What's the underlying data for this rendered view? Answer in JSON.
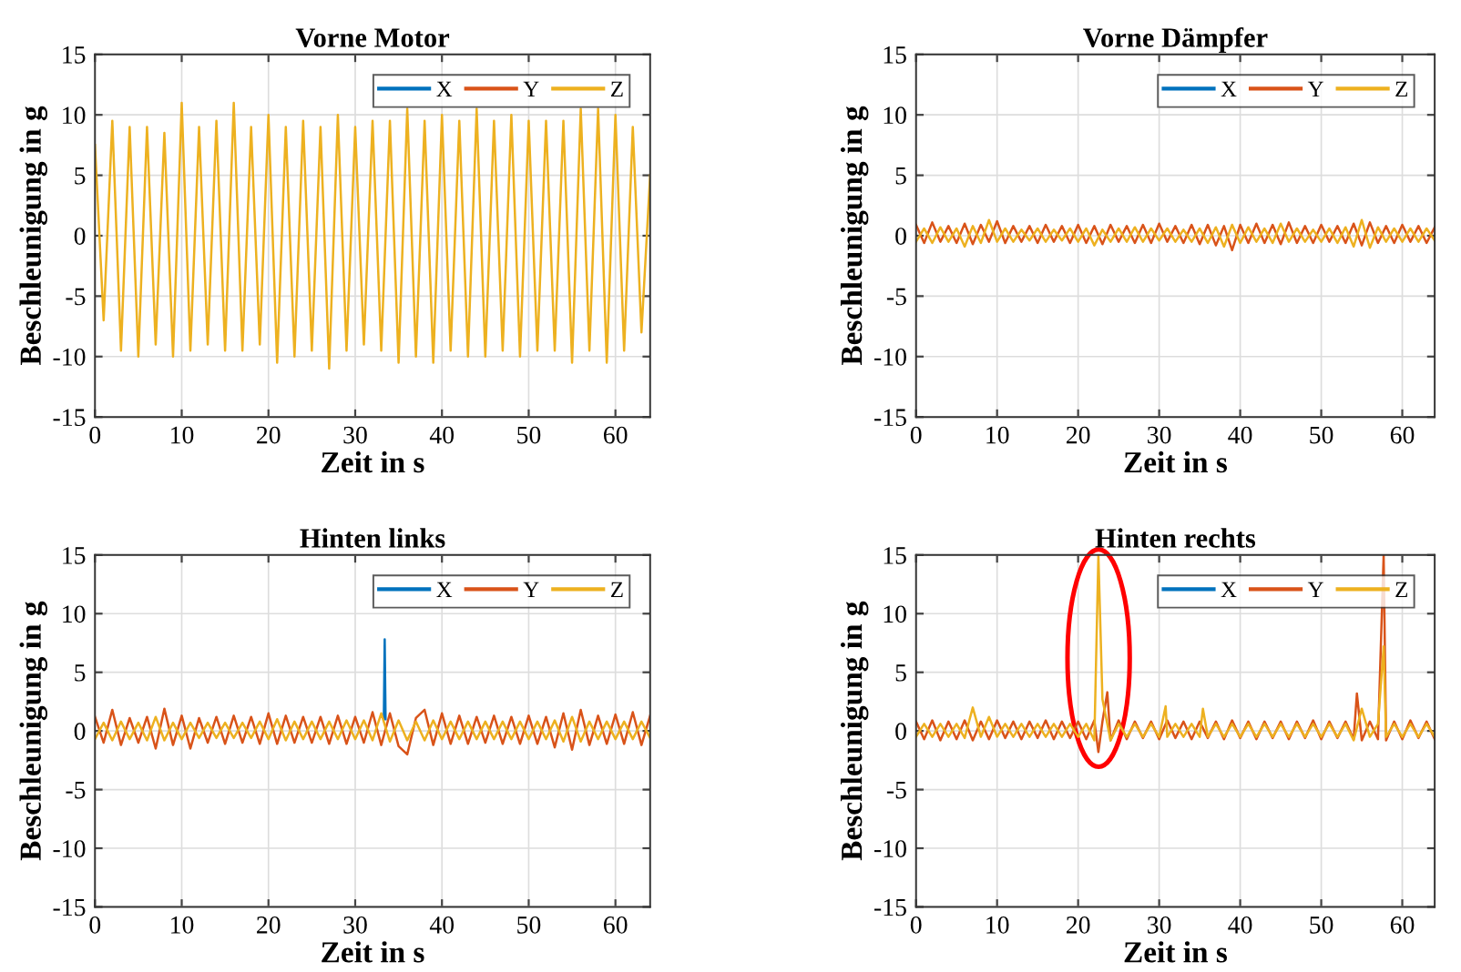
{
  "chart_data": [
    {
      "type": "line",
      "title": "Vorne Motor",
      "xlabel": "Zeit in s",
      "ylabel": "Beschleunigung in g",
      "xlim": [
        0,
        64
      ],
      "xticks": [
        0,
        10,
        20,
        30,
        40,
        50,
        60
      ],
      "ylim": [
        -15,
        15
      ],
      "yticks": [
        -15,
        -10,
        -5,
        0,
        5,
        10,
        15
      ],
      "grid": true,
      "legend": "top right",
      "x": [
        0,
        1,
        2,
        3,
        4,
        5,
        6,
        7,
        8,
        9,
        10,
        11,
        12,
        13,
        14,
        15,
        16,
        17,
        18,
        19,
        20,
        21,
        22,
        23,
        24,
        25,
        26,
        27,
        28,
        29,
        30,
        31,
        32,
        33,
        34,
        35,
        36,
        37,
        38,
        39,
        40,
        41,
        42,
        43,
        44,
        45,
        46,
        47,
        48,
        49,
        50,
        51,
        52,
        53,
        54,
        55,
        56,
        57,
        58,
        59,
        60,
        61,
        62,
        63,
        64
      ],
      "series": [
        {
          "name": "X",
          "color": "#0072bd",
          "values": [
            null,
            null,
            null,
            null,
            null,
            null,
            null,
            null,
            null,
            null,
            null,
            null,
            null,
            null,
            null,
            null,
            null,
            null,
            null,
            null,
            null,
            null,
            null,
            null,
            null,
            null,
            null,
            null,
            null,
            null,
            null,
            null,
            null,
            null,
            null,
            null,
            null,
            null,
            null,
            null,
            null,
            null,
            null,
            null,
            null,
            null,
            null,
            null,
            null,
            null,
            null,
            null,
            null,
            null,
            null,
            null,
            null,
            null,
            null,
            null,
            null,
            null,
            null,
            null,
            null
          ]
        },
        {
          "name": "Y",
          "color": "#d95319",
          "values": [
            null,
            null,
            null,
            null,
            null,
            null,
            null,
            null,
            null,
            null,
            null,
            null,
            null,
            null,
            null,
            null,
            null,
            null,
            null,
            null,
            null,
            null,
            null,
            null,
            null,
            null,
            null,
            null,
            null,
            null,
            null,
            null,
            null,
            null,
            null,
            null,
            null,
            null,
            null,
            null,
            null,
            null,
            null,
            null,
            null,
            null,
            null,
            null,
            null,
            null,
            null,
            null,
            null,
            null,
            null,
            null,
            null,
            null,
            null,
            null,
            null,
            null,
            null,
            null,
            null
          ]
        },
        {
          "name": "Z",
          "color": "#edb120",
          "values": [
            7.5,
            -7,
            9.5,
            -9.5,
            9,
            -10,
            9,
            -9,
            8.5,
            -10,
            11,
            -9.5,
            9,
            -9,
            9.5,
            -9.5,
            11,
            -9.5,
            9,
            -9,
            10,
            -10.5,
            9,
            -10,
            9.5,
            -9.5,
            9,
            -11,
            10,
            -9.5,
            9,
            -9,
            9.5,
            -9.5,
            9.5,
            -10.5,
            10.5,
            -10,
            9.5,
            -10.5,
            10,
            -9.5,
            9.5,
            -10,
            10.5,
            -10,
            9.5,
            -9.5,
            10,
            -10,
            9.5,
            -9.5,
            9.5,
            -9.5,
            9.5,
            -10.5,
            10.5,
            -9.5,
            10.5,
            -10.5,
            10,
            -9.5,
            9,
            -8,
            5
          ]
        }
      ]
    },
    {
      "type": "line",
      "title": "Vorne Dämpfer",
      "xlabel": "Zeit in s",
      "ylabel": "Beschleunigung in g",
      "xlim": [
        0,
        64
      ],
      "xticks": [
        0,
        10,
        20,
        30,
        40,
        50,
        60
      ],
      "ylim": [
        -15,
        15
      ],
      "yticks": [
        -15,
        -10,
        -5,
        0,
        5,
        10,
        15
      ],
      "grid": true,
      "legend": "top right",
      "x": [
        0,
        1,
        2,
        3,
        4,
        5,
        6,
        7,
        8,
        9,
        10,
        11,
        12,
        13,
        14,
        15,
        16,
        17,
        18,
        19,
        20,
        21,
        22,
        23,
        24,
        25,
        26,
        27,
        28,
        29,
        30,
        31,
        32,
        33,
        34,
        35,
        36,
        37,
        38,
        39,
        40,
        41,
        42,
        43,
        44,
        45,
        46,
        47,
        48,
        49,
        50,
        51,
        52,
        53,
        54,
        55,
        56,
        57,
        58,
        59,
        60,
        61,
        62,
        63,
        64
      ],
      "series": [
        {
          "name": "X",
          "color": "#0072bd",
          "values": [
            null,
            null,
            null,
            null,
            null,
            null,
            null,
            null,
            null,
            null,
            null,
            null,
            null,
            null,
            null,
            null,
            null,
            null,
            null,
            null,
            null,
            null,
            null,
            null,
            null,
            null,
            null,
            null,
            null,
            null,
            null,
            null,
            null,
            null,
            null,
            null,
            null,
            null,
            null,
            null,
            null,
            null,
            null,
            null,
            null,
            null,
            null,
            null,
            null,
            null,
            null,
            null,
            null,
            null,
            null,
            null,
            null,
            null,
            null,
            null,
            null,
            null,
            null,
            null,
            null
          ]
        },
        {
          "name": "Y",
          "color": "#d95319",
          "values": [
            0.9,
            -0.6,
            1.1,
            -0.5,
            0.8,
            -0.6,
            1.0,
            -0.7,
            0.9,
            -0.5,
            1.2,
            -0.6,
            0.8,
            -0.5,
            0.8,
            -0.6,
            0.9,
            -0.5,
            0.8,
            -0.6,
            0.9,
            -0.6,
            0.8,
            -0.7,
            0.9,
            -0.5,
            0.8,
            -0.6,
            0.9,
            -0.6,
            1.0,
            -0.5,
            0.8,
            -0.6,
            0.9,
            -0.7,
            0.9,
            -0.8,
            0.8,
            -1.2,
            0.9,
            -0.6,
            1.0,
            -0.6,
            0.9,
            -0.7,
            1.1,
            -0.6,
            0.8,
            -0.6,
            0.9,
            -0.5,
            0.8,
            -0.6,
            1.0,
            -0.8,
            1.1,
            -0.6,
            0.8,
            -0.6,
            0.9,
            -0.5,
            0.8,
            -0.6,
            0.7
          ]
        },
        {
          "name": "Z",
          "color": "#edb120",
          "values": [
            -0.5,
            0.6,
            -0.6,
            0.7,
            -0.5,
            0.6,
            -0.9,
            0.8,
            -0.6,
            1.3,
            -0.5,
            0.6,
            -0.5,
            0.5,
            -0.4,
            0.6,
            -0.5,
            0.5,
            -0.4,
            0.6,
            -0.5,
            0.6,
            -0.8,
            0.5,
            -0.5,
            0.6,
            -0.5,
            0.7,
            -0.5,
            0.6,
            -0.4,
            0.6,
            -0.5,
            0.5,
            -0.5,
            0.6,
            -0.6,
            0.7,
            -0.9,
            0.9,
            -0.6,
            0.7,
            -0.5,
            0.6,
            -0.6,
            1.0,
            -0.5,
            0.6,
            -0.5,
            0.5,
            -0.5,
            0.6,
            -0.6,
            0.7,
            -0.9,
            1.3,
            -1.0,
            0.7,
            -0.5,
            0.6,
            -0.5,
            0.6,
            -0.5,
            0.6,
            -0.4
          ]
        }
      ]
    },
    {
      "type": "line",
      "title": "Hinten links",
      "xlabel": "Zeit in s",
      "ylabel": "Beschleunigung in g",
      "xlim": [
        0,
        64
      ],
      "xticks": [
        0,
        10,
        20,
        30,
        40,
        50,
        60
      ],
      "ylim": [
        -15,
        15
      ],
      "yticks": [
        -15,
        -10,
        -5,
        0,
        5,
        10,
        15
      ],
      "grid": true,
      "legend": "top right",
      "x": [
        0,
        1,
        2,
        3,
        4,
        5,
        6,
        7,
        8,
        9,
        10,
        11,
        12,
        13,
        14,
        15,
        16,
        17,
        18,
        19,
        20,
        21,
        22,
        23,
        24,
        25,
        26,
        27,
        28,
        29,
        30,
        31,
        32,
        33,
        34,
        35,
        36,
        37,
        38,
        39,
        40,
        41,
        42,
        43,
        44,
        45,
        46,
        47,
        48,
        49,
        50,
        51,
        52,
        53,
        54,
        55,
        56,
        57,
        58,
        59,
        60,
        61,
        62,
        63,
        64
      ],
      "series": [
        {
          "name": "X",
          "color": "#0072bd",
          "x": [
            33.3,
            33.4,
            33.5
          ],
          "values": [
            1.0,
            7.8,
            1.0
          ]
        },
        {
          "name": "Y",
          "color": "#d95319",
          "values": [
            1.2,
            -1.0,
            1.8,
            -1.2,
            1.1,
            -1.0,
            1.2,
            -1.5,
            1.9,
            -1.2,
            1.3,
            -1.5,
            1.1,
            -1.0,
            1.2,
            -1.1,
            1.3,
            -1.0,
            1.2,
            -1.1,
            1.5,
            -1.1,
            1.3,
            -1.0,
            1.2,
            -1.0,
            1.2,
            -1.1,
            1.3,
            -1.1,
            1.2,
            -1.0,
            1.6,
            -1.2,
            1.5,
            -1.3,
            -2.0,
            1.1,
            1.8,
            -1.2,
            1.5,
            -1.1,
            1.3,
            -1.1,
            1.2,
            -1.0,
            1.3,
            -1.1,
            1.2,
            -1.1,
            1.3,
            -1.1,
            1.2,
            -1.4,
            1.5,
            -1.6,
            1.8,
            -1.2,
            1.3,
            -1.1,
            1.4,
            -1.1,
            1.6,
            -1.2,
            1.3
          ]
        },
        {
          "name": "Z",
          "color": "#edb120",
          "values": [
            -0.7,
            0.7,
            -0.8,
            0.8,
            -0.7,
            0.7,
            -0.8,
            1.2,
            -0.8,
            0.7,
            -0.7,
            0.7,
            -0.6,
            0.7,
            -0.6,
            0.7,
            -0.6,
            0.7,
            -0.6,
            0.8,
            -0.7,
            1.0,
            -0.8,
            0.8,
            -0.7,
            0.8,
            -0.7,
            0.8,
            -0.7,
            0.9,
            -0.7,
            0.9,
            -0.8,
            1.5,
            -0.9,
            0.9,
            -0.8,
            0.8,
            -0.8,
            0.9,
            -0.7,
            0.8,
            -0.7,
            0.8,
            -0.7,
            0.8,
            -0.7,
            0.8,
            -0.7,
            0.8,
            -0.7,
            0.8,
            -0.7,
            0.9,
            -0.9,
            1.2,
            -0.9,
            0.8,
            -0.7,
            0.8,
            -0.7,
            0.8,
            -0.7,
            0.8,
            -0.6
          ]
        }
      ]
    },
    {
      "type": "line",
      "title": "Hinten rechts",
      "xlabel": "Zeit in s",
      "ylabel": "Beschleunigung in g",
      "xlim": [
        0,
        64
      ],
      "xticks": [
        0,
        10,
        20,
        30,
        40,
        50,
        60
      ],
      "ylim": [
        -15,
        15
      ],
      "yticks": [
        -15,
        -10,
        -5,
        0,
        5,
        10,
        15
      ],
      "grid": true,
      "legend": "top right",
      "series": [
        {
          "name": "X",
          "color": "#0072bd"
        },
        {
          "name": "Y",
          "color": "#d95319",
          "x": [
            0,
            1,
            2,
            3,
            4,
            5,
            6,
            7,
            8,
            9,
            10,
            11,
            12,
            13,
            14,
            15,
            16,
            17,
            18,
            19,
            20,
            21,
            22,
            22.5,
            23,
            23.6,
            24,
            25,
            26,
            27,
            28,
            29,
            30,
            31,
            32,
            33,
            34,
            35,
            36,
            37,
            38,
            39,
            40,
            41,
            42,
            43,
            44,
            45,
            46,
            47,
            48,
            49,
            50,
            51,
            52,
            53,
            54,
            54.4,
            55,
            56,
            57,
            57.7,
            58,
            59,
            60,
            61,
            62,
            63,
            64
          ],
          "values": [
            0.8,
            -0.7,
            0.9,
            -0.8,
            0.8,
            -0.7,
            0.9,
            -0.8,
            0.8,
            -0.7,
            0.9,
            -0.6,
            0.8,
            -0.7,
            0.8,
            -0.6,
            0.9,
            -0.7,
            0.8,
            -0.6,
            0.8,
            -0.7,
            0.9,
            -1.8,
            0.8,
            3.3,
            -0.8,
            0.9,
            -0.7,
            0.8,
            -0.6,
            0.8,
            -0.7,
            0.9,
            -0.6,
            0.8,
            -0.7,
            0.8,
            -0.6,
            0.8,
            -0.7,
            0.9,
            -0.6,
            0.8,
            -0.7,
            0.8,
            -0.6,
            0.8,
            -0.7,
            0.8,
            -0.6,
            0.9,
            -0.7,
            0.8,
            -0.6,
            0.8,
            -0.7,
            3.2,
            -0.8,
            0.8,
            -0.7,
            15,
            -0.8,
            0.8,
            -0.7,
            0.9,
            -0.6,
            0.8,
            -0.7
          ]
        },
        {
          "name": "Z",
          "color": "#edb120",
          "x": [
            0,
            1,
            2,
            3,
            4,
            5,
            6,
            7,
            8,
            9,
            10,
            11,
            12,
            13,
            14,
            15,
            16,
            17,
            18,
            19,
            20,
            21,
            22,
            22.5,
            23,
            24,
            25,
            26,
            27,
            28,
            29,
            30,
            30.8,
            31,
            32,
            33,
            34,
            35,
            35.4,
            36,
            37,
            38,
            39,
            40,
            41,
            42,
            43,
            44,
            45,
            46,
            47,
            48,
            49,
            50,
            51,
            52,
            53,
            54,
            55,
            56,
            57,
            57.7,
            58,
            59,
            60,
            61,
            62,
            63,
            64
          ],
          "values": [
            -0.5,
            0.6,
            -0.5,
            0.6,
            -0.5,
            0.6,
            -0.6,
            2.0,
            -0.5,
            1.2,
            -0.5,
            0.6,
            -0.5,
            0.6,
            -0.5,
            0.6,
            -0.5,
            0.6,
            -0.5,
            0.6,
            -0.5,
            0.6,
            -0.8,
            15,
            2.7,
            -0.8,
            0.6,
            -0.5,
            0.6,
            -0.5,
            0.6,
            -0.5,
            2.1,
            -0.5,
            0.6,
            -0.5,
            0.6,
            -0.5,
            1.9,
            -0.5,
            0.6,
            -0.5,
            0.6,
            -0.5,
            0.6,
            -0.5,
            0.6,
            -0.5,
            0.6,
            -0.5,
            0.6,
            -0.5,
            0.6,
            -0.5,
            0.6,
            -0.5,
            0.6,
            -0.8,
            1.9,
            -0.5,
            0.6,
            7.2,
            -0.5,
            0.6,
            -0.5,
            0.6,
            -0.5,
            0.6,
            -0.5
          ]
        }
      ]
    }
  ]
}
